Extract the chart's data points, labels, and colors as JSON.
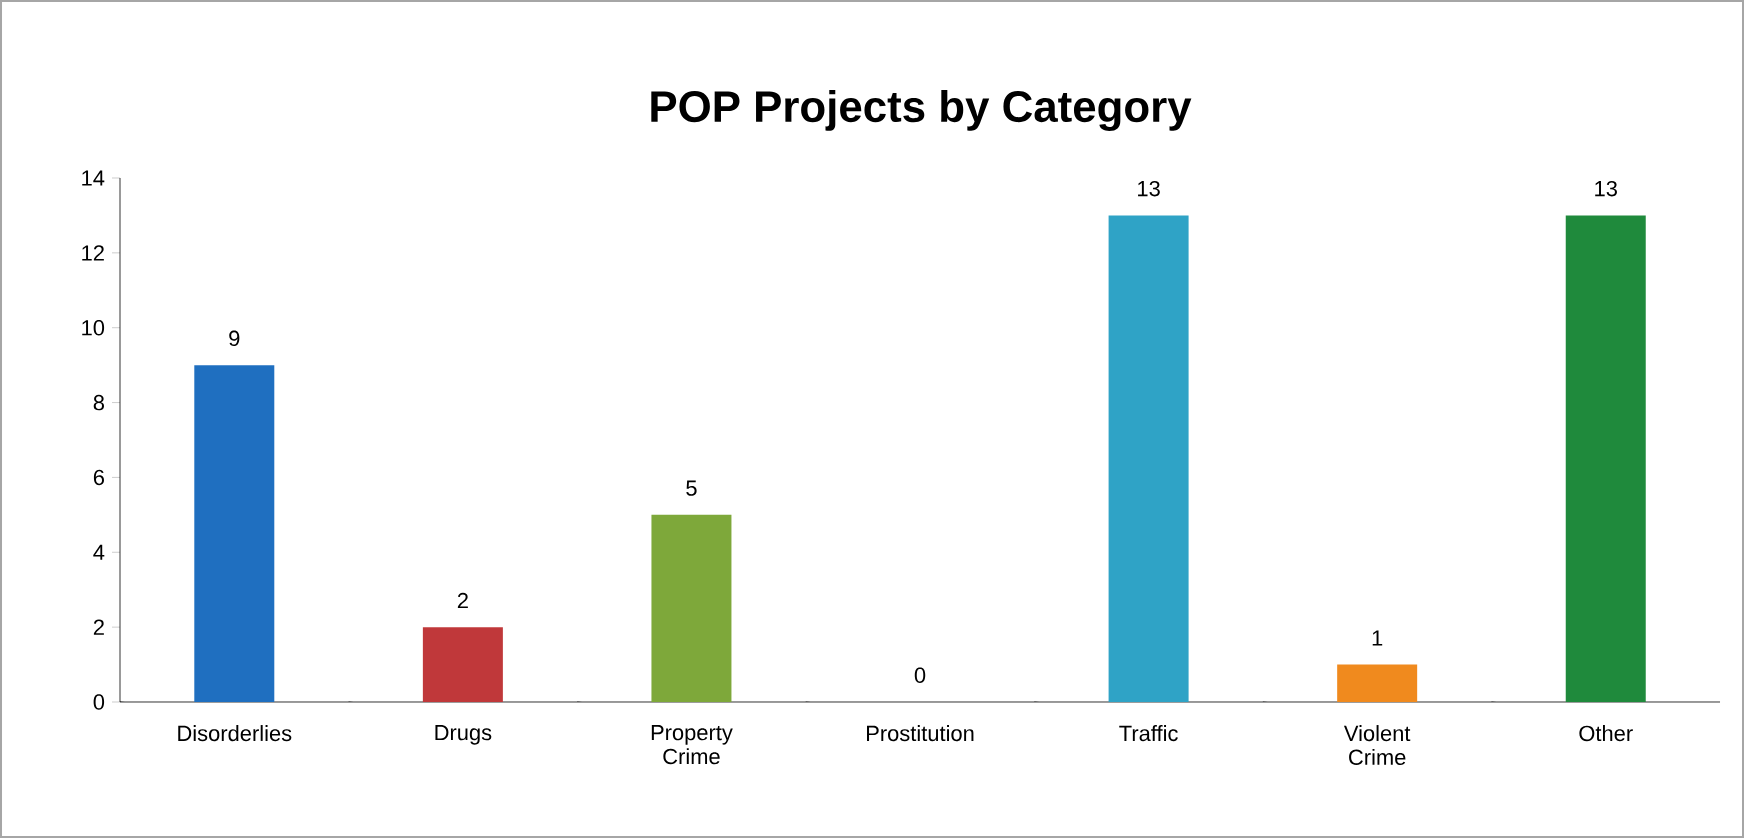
{
  "chart_data": {
    "type": "bar",
    "title": "POP Projects by Category",
    "categories": [
      "Disorderlies",
      "Drugs",
      "Property Crime",
      "Prostitution",
      "Traffic",
      "Violent Crime",
      "Other"
    ],
    "values": [
      9,
      2,
      5,
      0,
      13,
      1,
      13
    ],
    "colors": [
      "#1f6fc0",
      "#c0383a",
      "#7ea83a",
      "#7d5aa0",
      "#2fa3c6",
      "#f08a1e",
      "#1f8a3c"
    ],
    "ylim": [
      0,
      14
    ],
    "yticks": [
      0,
      2,
      4,
      6,
      8,
      10,
      12,
      14
    ],
    "data_labels": true,
    "grid": false
  }
}
